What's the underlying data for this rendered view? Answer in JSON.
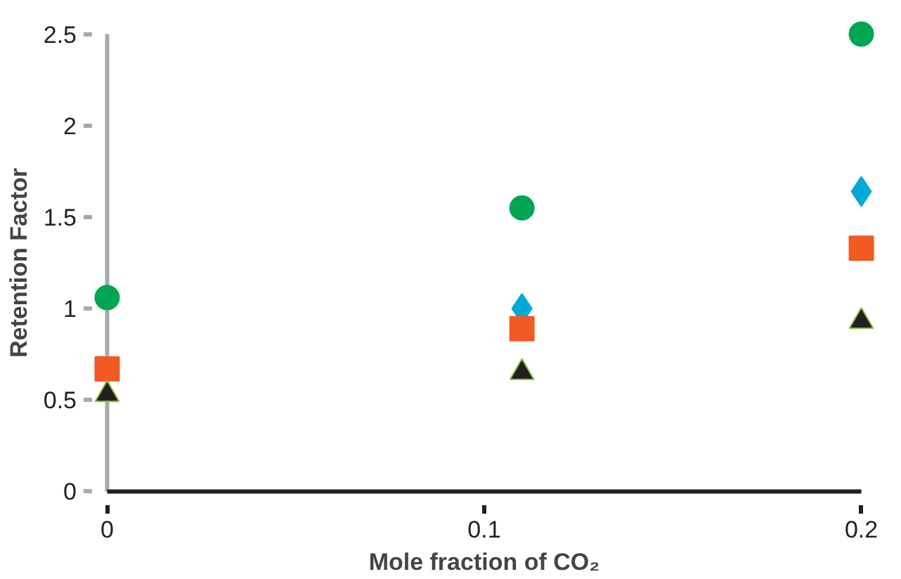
{
  "chart_data": {
    "type": "scatter",
    "xlabel": "Mole fraction of CO₂",
    "ylabel": "Retention Factor",
    "x": [
      0,
      0.11,
      0.2
    ],
    "series": [
      {
        "color": "#00a9d8",
        "marker": "diamond",
        "values": [
          null,
          1.0,
          1.64
        ]
      },
      {
        "color": "#f15a22",
        "marker": "square",
        "values": [
          0.67,
          0.89,
          1.33
        ]
      },
      {
        "color": "#231f20",
        "marker": "triangle",
        "values": [
          0.53,
          0.65,
          0.93
        ]
      },
      {
        "color": "#00a651",
        "marker": "circle",
        "values": [
          1.06,
          1.55,
          2.5
        ]
      }
    ],
    "xlim": [
      0,
      0.2
    ],
    "xticks": [
      0,
      0.1,
      0.2
    ],
    "ylim": [
      0,
      2.5
    ],
    "yticks": [
      0,
      0.5,
      1,
      1.5,
      2,
      2.5
    ],
    "grid": false
  }
}
